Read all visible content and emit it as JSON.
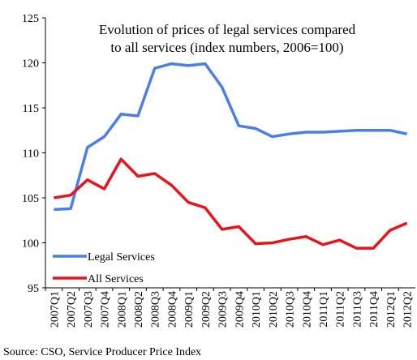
{
  "chart_data": {
    "type": "line",
    "title": [
      "Evolution of prices of legal services compared",
      "to all services (index numbers, 2006=100)"
    ],
    "categories": [
      "2007Q1",
      "2007Q2",
      "2007Q3",
      "2007Q4",
      "2008Q1",
      "2008Q2",
      "2008Q3",
      "2008Q4",
      "2009Q1",
      "2009Q2",
      "2009Q3",
      "2009Q4",
      "2010Q1",
      "2010Q2",
      "2010Q3",
      "2010Q4",
      "2011Q1",
      "2011Q2",
      "2011Q3",
      "2011Q4",
      "2012Q1",
      "2012Q2"
    ],
    "series": [
      {
        "name": "Legal Services",
        "color": "#4a7ee8",
        "values": [
          103.7,
          103.8,
          110.6,
          111.8,
          114.3,
          114.1,
          119.4,
          119.9,
          119.7,
          119.9,
          117.3,
          113.0,
          112.7,
          111.8,
          112.1,
          112.3,
          112.3,
          112.4,
          112.5,
          112.5,
          112.5,
          112.1
        ]
      },
      {
        "name": "All Services",
        "color": "#e8141c",
        "values": [
          105.0,
          105.3,
          107.0,
          106.0,
          109.3,
          107.4,
          107.7,
          106.4,
          104.5,
          103.9,
          101.5,
          101.8,
          99.9,
          100.0,
          100.4,
          100.7,
          99.8,
          100.3,
          99.4,
          99.4,
          101.4,
          102.2
        ]
      }
    ],
    "ylim": [
      95,
      125
    ],
    "yticks": [
      95,
      100,
      105,
      110,
      115,
      120,
      125
    ],
    "grid": false,
    "legend": "lower left",
    "source": "Source: CSO, Service Producer Price Index"
  }
}
